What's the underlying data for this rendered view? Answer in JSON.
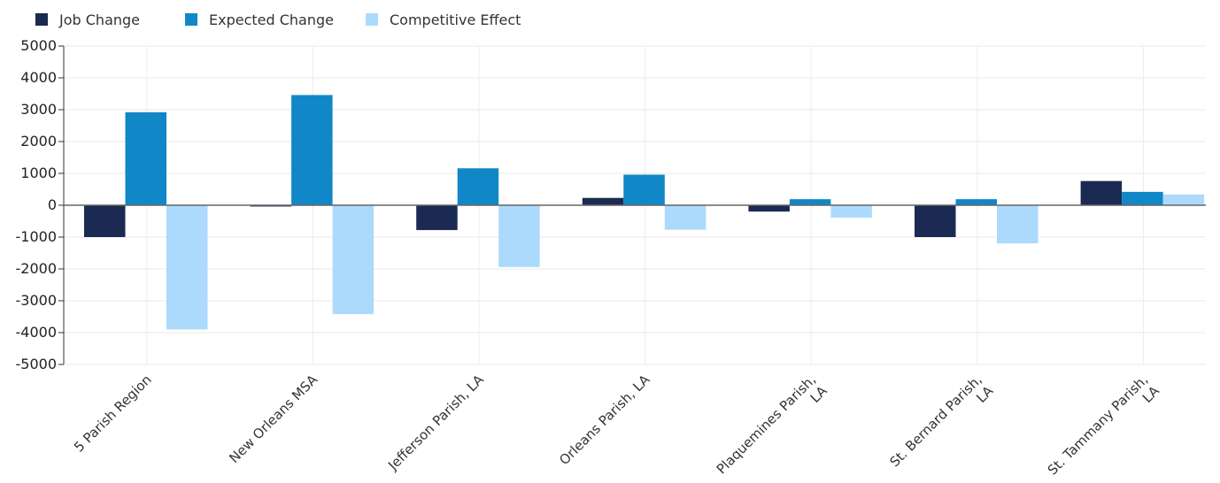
{
  "chart_data": {
    "type": "bar",
    "categories": [
      [
        "5 Parish Region"
      ],
      [
        "New Orleans MSA"
      ],
      [
        "Jefferson Parish, LA"
      ],
      [
        "Orleans Parish, LA"
      ],
      [
        "Plaquemines Parish,",
        "LA"
      ],
      [
        "St. Bernard Parish,",
        "LA"
      ],
      [
        "St. Tammany Parish,",
        "LA"
      ]
    ],
    "series": [
      {
        "name": "Job Change",
        "color": "#1b2a52",
        "values": [
          -1000,
          -40,
          -780,
          230,
          -200,
          -1000,
          760
        ]
      },
      {
        "name": "Expected Change",
        "color": "#1187c7",
        "values": [
          2920,
          3460,
          1160,
          960,
          190,
          190,
          420
        ]
      },
      {
        "name": "Competitive Effect",
        "color": "#acdafc",
        "values": [
          -3900,
          -3420,
          -1940,
          -770,
          -390,
          -1200,
          340
        ]
      }
    ],
    "ylim": [
      -5000,
      5000
    ],
    "yticks": [
      5000,
      4000,
      3000,
      2000,
      1000,
      0,
      -1000,
      -2000,
      -3000,
      -4000,
      -5000
    ],
    "legend": "top-left",
    "grid": true
  }
}
